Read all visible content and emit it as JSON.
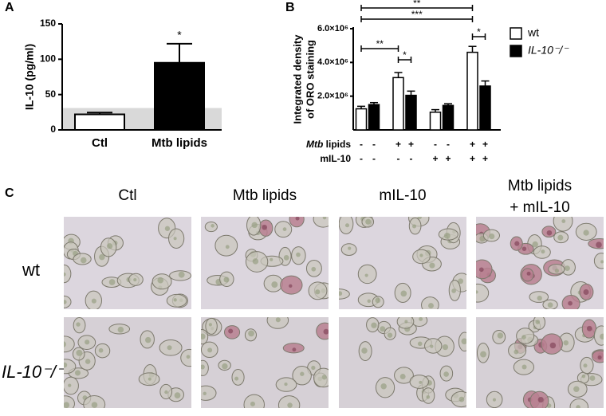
{
  "chart_data": [
    {
      "panel": "A",
      "type": "bar",
      "ylabel": "IL-10 (pg/ml)",
      "categories": [
        "Ctl",
        "Mtb lipids"
      ],
      "values": [
        22,
        95
      ],
      "errors": [
        2.5,
        27
      ],
      "colors": [
        "#ffffff",
        "#000000"
      ],
      "ylim": [
        0,
        150
      ],
      "yticks": [
        0,
        50,
        100,
        150
      ],
      "shaded_band": [
        0,
        31
      ],
      "annotations": [
        {
          "index": 1,
          "text": "*"
        }
      ]
    },
    {
      "panel": "B",
      "type": "grouped_bar",
      "ylabel": [
        "Integrated density",
        "of ORO staining"
      ],
      "series": [
        {
          "name": "wt",
          "color": "#ffffff",
          "values": [
            1250000,
            3100000,
            1050000,
            4600000
          ],
          "errors": [
            150000,
            300000,
            150000,
            350000
          ]
        },
        {
          "name": "IL-10⁻/⁻",
          "color": "#000000",
          "values": [
            1500000,
            2050000,
            1450000,
            2600000
          ],
          "errors": [
            120000,
            250000,
            100000,
            300000
          ]
        }
      ],
      "ylim": [
        0,
        6000000
      ],
      "yticks": [
        {
          "value": 2000000,
          "label": "2.0×10⁶"
        },
        {
          "value": 4000000,
          "label": "4.0×10⁶"
        },
        {
          "value": 6000000,
          "label": "6.0×10⁶"
        }
      ],
      "legend": "upper right",
      "significance": [
        {
          "from": 0,
          "to": 6,
          "text": "**"
        },
        {
          "from": 0,
          "to": 6,
          "text": "***"
        },
        {
          "from": 0,
          "to": 2,
          "text": "**"
        },
        {
          "from": 2,
          "to": 3,
          "text": "*"
        },
        {
          "from": 6,
          "to": 7,
          "text": "*"
        }
      ],
      "condition_rows": [
        {
          "label_italic": "Mtb",
          "label": "lipids",
          "signs": [
            "-",
            "-",
            "+",
            "+",
            "-",
            "-",
            "+",
            "+"
          ]
        },
        {
          "label": "mIL-10",
          "signs": [
            "-",
            "-",
            "-",
            "-",
            "+",
            "+",
            "+",
            "+"
          ]
        }
      ]
    }
  ],
  "panel_c": {
    "panel": "C",
    "columns": [
      "Ctl",
      "Mtb lipids",
      "mIL-10",
      [
        "Mtb lipids",
        "+ mIL-10"
      ]
    ],
    "rows": [
      "wt",
      "IL-10⁻/⁻"
    ]
  }
}
